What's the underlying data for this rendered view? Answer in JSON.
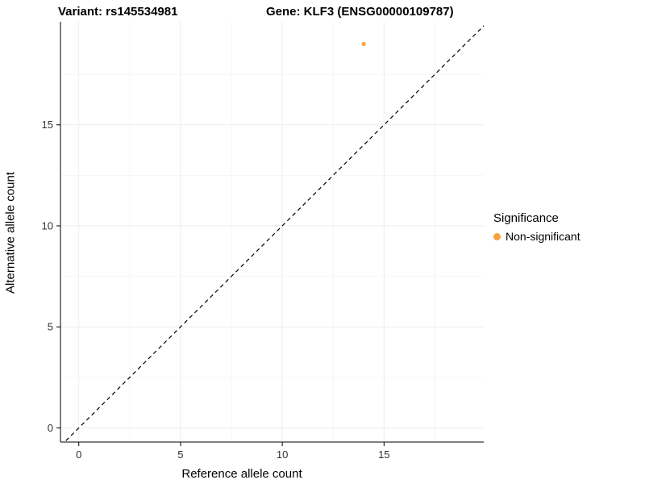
{
  "titles": {
    "left": "Variant: rs145534981",
    "right": "Gene: KLF3 (ENSG00000109787)"
  },
  "legend": {
    "title": "Significance",
    "items": [
      {
        "label": "Non-significant",
        "color": "#F9A13C"
      }
    ]
  },
  "chart_data": {
    "type": "scatter",
    "title_left": "Variant: rs145534981",
    "title_right": "Gene: KLF3 (ENSG00000109787)",
    "xlabel": "Reference allele count",
    "ylabel": "Alternative allele count",
    "xlim": [
      -0.9,
      19.9
    ],
    "ylim": [
      -0.7,
      20.1
    ],
    "x_ticks": [
      0,
      5,
      10,
      15
    ],
    "y_ticks": [
      0,
      5,
      10,
      15
    ],
    "minor_ticks": [
      2.5,
      7.5,
      12.5,
      17.5
    ],
    "grid": true,
    "identity_line": {
      "shown": true,
      "style": "dashed",
      "color": "#000000"
    },
    "series": [
      {
        "name": "Non-significant",
        "color": "#F9A13C",
        "points": [
          {
            "x": 14,
            "y": 19
          }
        ]
      }
    ],
    "legend_position": "right",
    "colors": {
      "grid_major": "#ededed",
      "grid_minor": "#f6f6f6",
      "axis_line": "#000000",
      "tick_text": "#303030"
    }
  }
}
